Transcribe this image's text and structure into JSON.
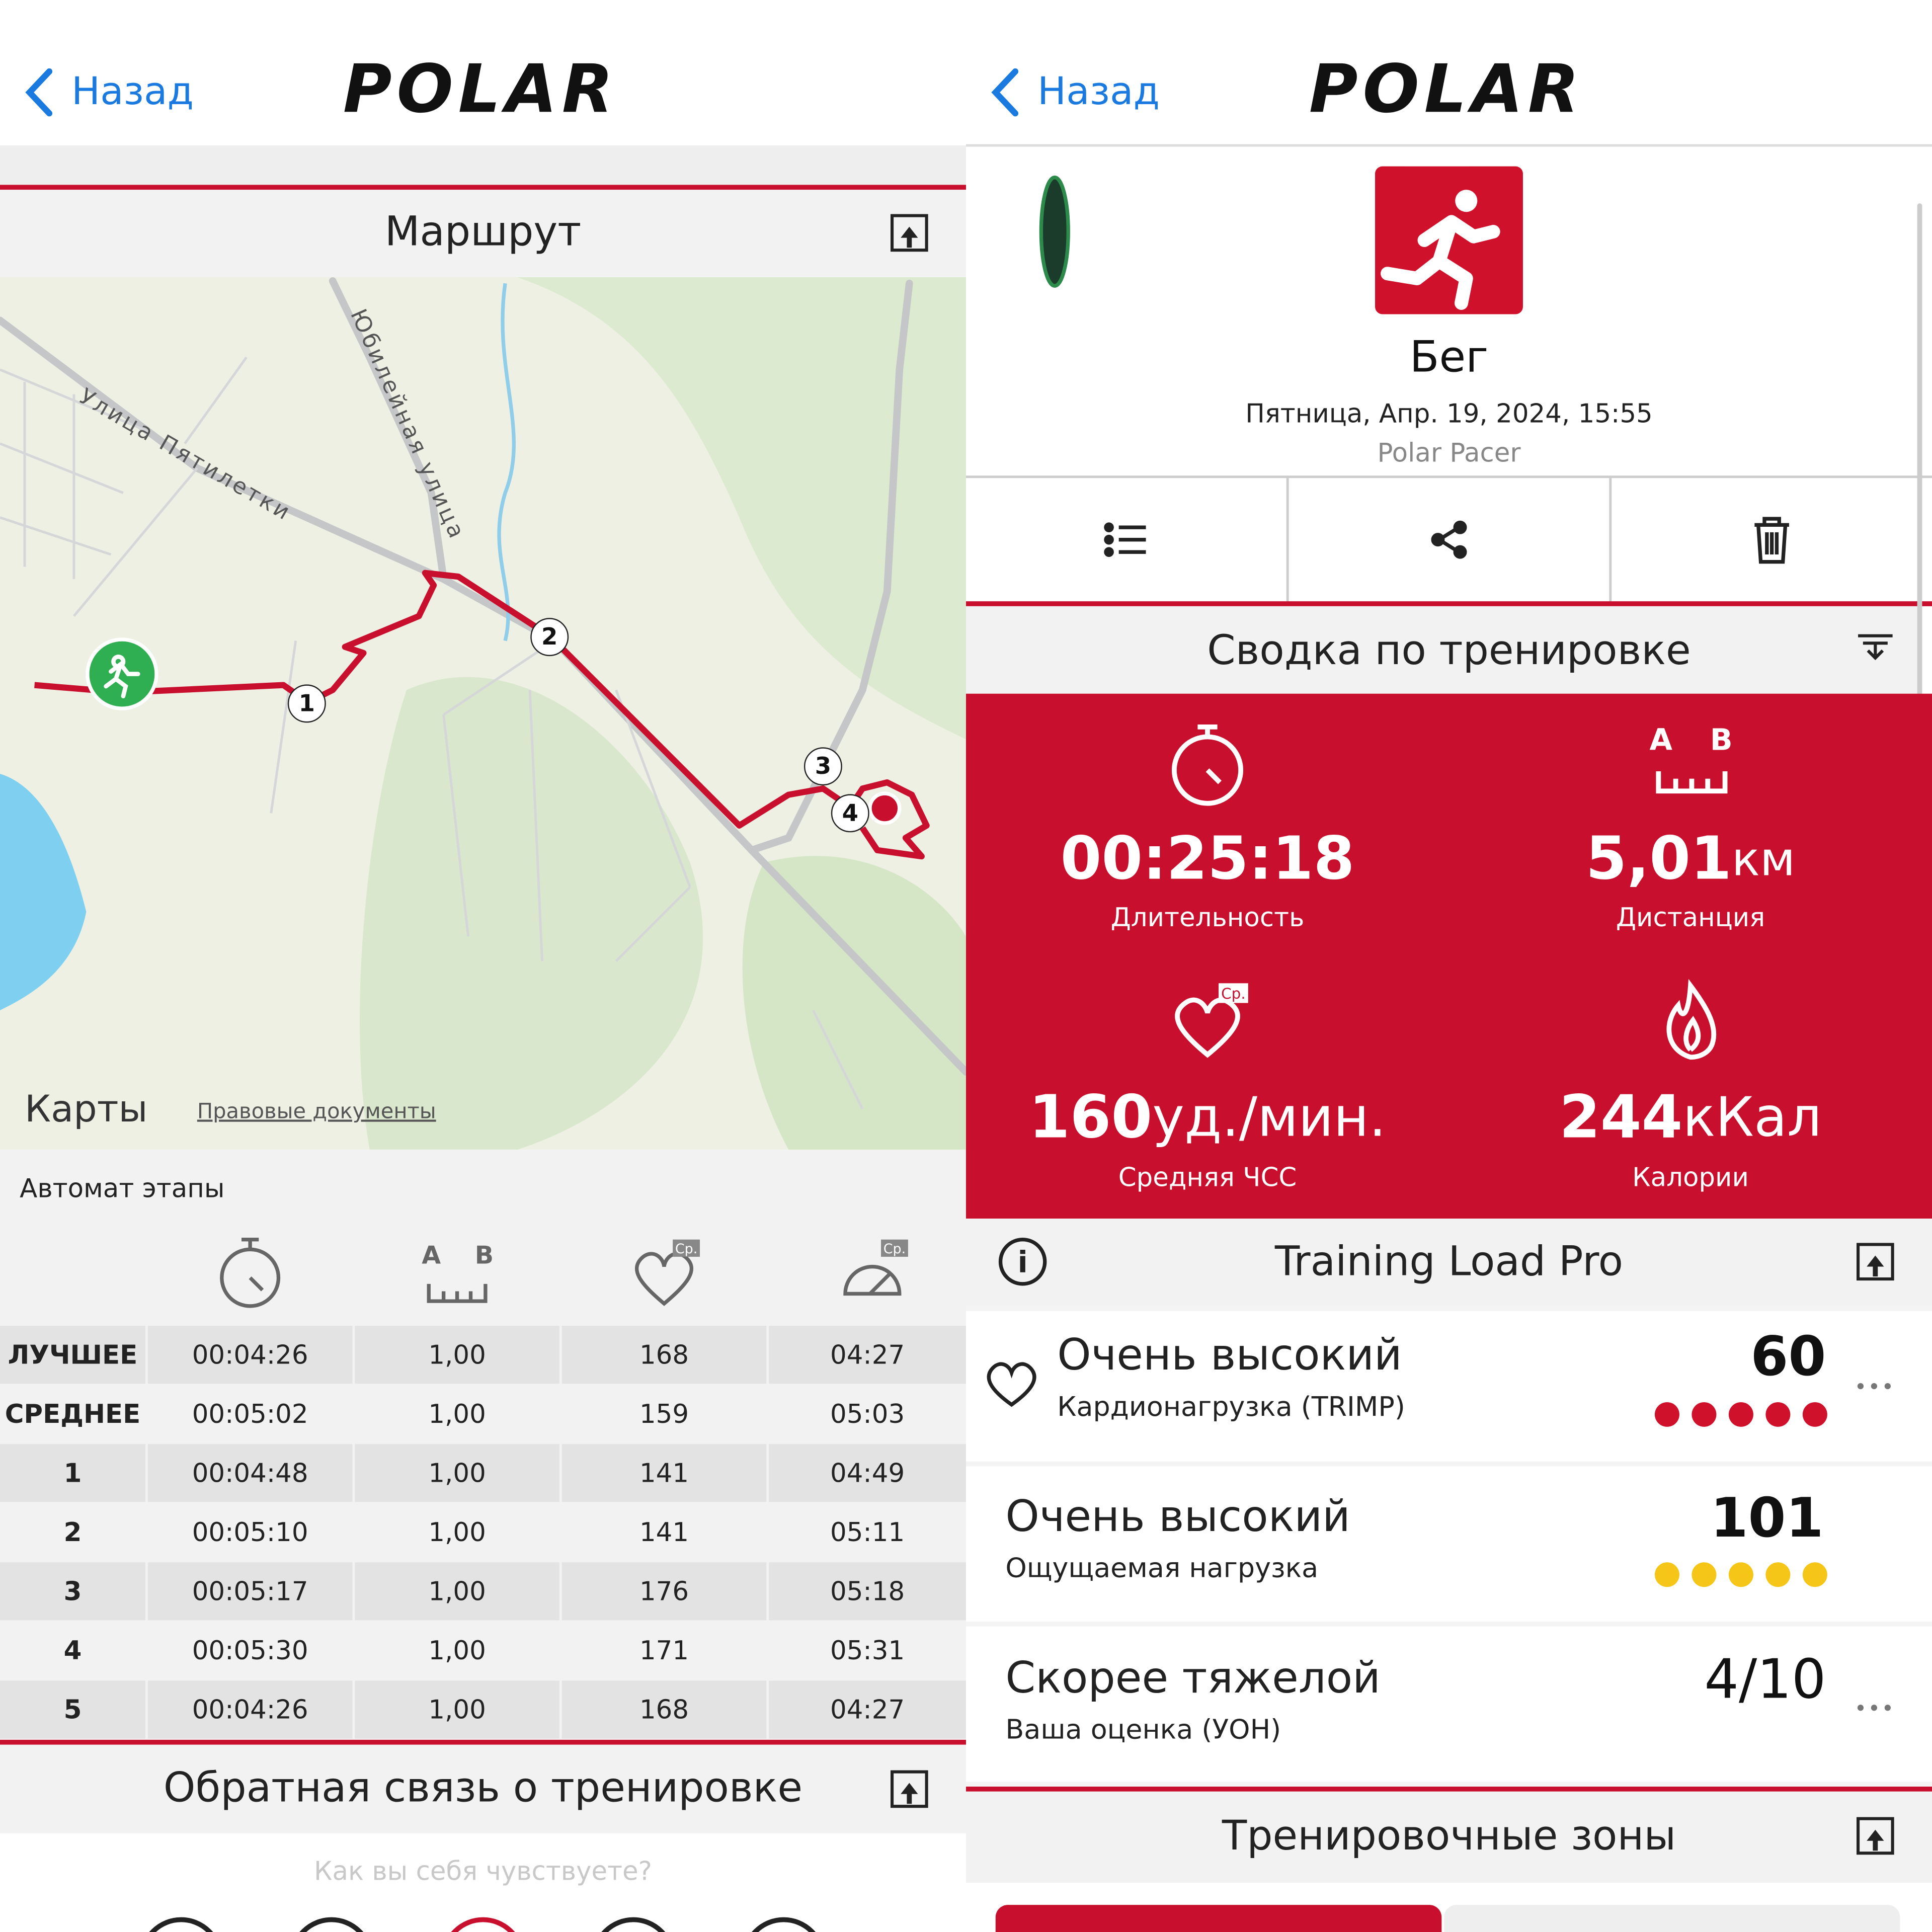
{
  "left": {
    "back": "Назад",
    "logo": "POLAR",
    "route": {
      "title": "Маршрут",
      "streets": [
        "Улица Пятилетки",
        "Юбилейная улица"
      ],
      "lap_markers": [
        "1",
        "2",
        "3",
        "4"
      ],
      "maps_brand": "Карты",
      "legal": "Правовые документы"
    },
    "laps": {
      "title": "Автомат этапы",
      "icon_labels": {
        "a": "A",
        "b": "B",
        "avg": "Ср."
      },
      "rows": [
        [
          "ЛУЧШЕЕ",
          "00:04:26",
          "1,00",
          "168",
          "04:27"
        ],
        [
          "СРЕДНЕЕ",
          "00:05:02",
          "1,00",
          "159",
          "05:03"
        ],
        [
          "1",
          "00:04:48",
          "1,00",
          "141",
          "04:49"
        ],
        [
          "2",
          "00:05:10",
          "1,00",
          "141",
          "05:11"
        ],
        [
          "3",
          "00:05:17",
          "1,00",
          "176",
          "05:18"
        ],
        [
          "4",
          "00:05:30",
          "1,00",
          "171",
          "05:31"
        ],
        [
          "5",
          "00:04:26",
          "1,00",
          "168",
          "04:27"
        ]
      ]
    },
    "feedback": {
      "title": "Обратная связь о тренировке",
      "prompt": "Как вы себя чувствуете?"
    }
  },
  "right": {
    "back": "Назад",
    "logo": "POLAR",
    "sport": "Бег",
    "date": "Пятница, Апр. 19, 2024, 15:55",
    "device": "Polar Pacer",
    "summary": {
      "title": "Сводка по тренировке",
      "icon_labels": {
        "a": "A",
        "b": "B",
        "avg": "Ср."
      },
      "duration": {
        "value": "00:25:18",
        "label": "Длительность"
      },
      "distance": {
        "value": "5,01",
        "unit": "км",
        "label": "Дистанция"
      },
      "heart_rate": {
        "value": "160",
        "unit": "уд./мин.",
        "label": "Средняя ЧСС"
      },
      "calories": {
        "value": "244",
        "unit": "кКал",
        "label": "Калории"
      }
    },
    "training_load": {
      "title": "Training Load Pro",
      "rows": [
        {
          "level": "Очень высокий",
          "label": "Кардионагрузка (TRIMP)",
          "value": "60"
        },
        {
          "level": "Очень высокий",
          "label": "Ощущаемая нагрузка",
          "value": "101"
        },
        {
          "level": "Скорее тяжелой",
          "label": "Ваша оценка (УОН)",
          "value": "4/10"
        }
      ]
    },
    "zones": {
      "title": "Тренировочные зоны"
    }
  }
}
